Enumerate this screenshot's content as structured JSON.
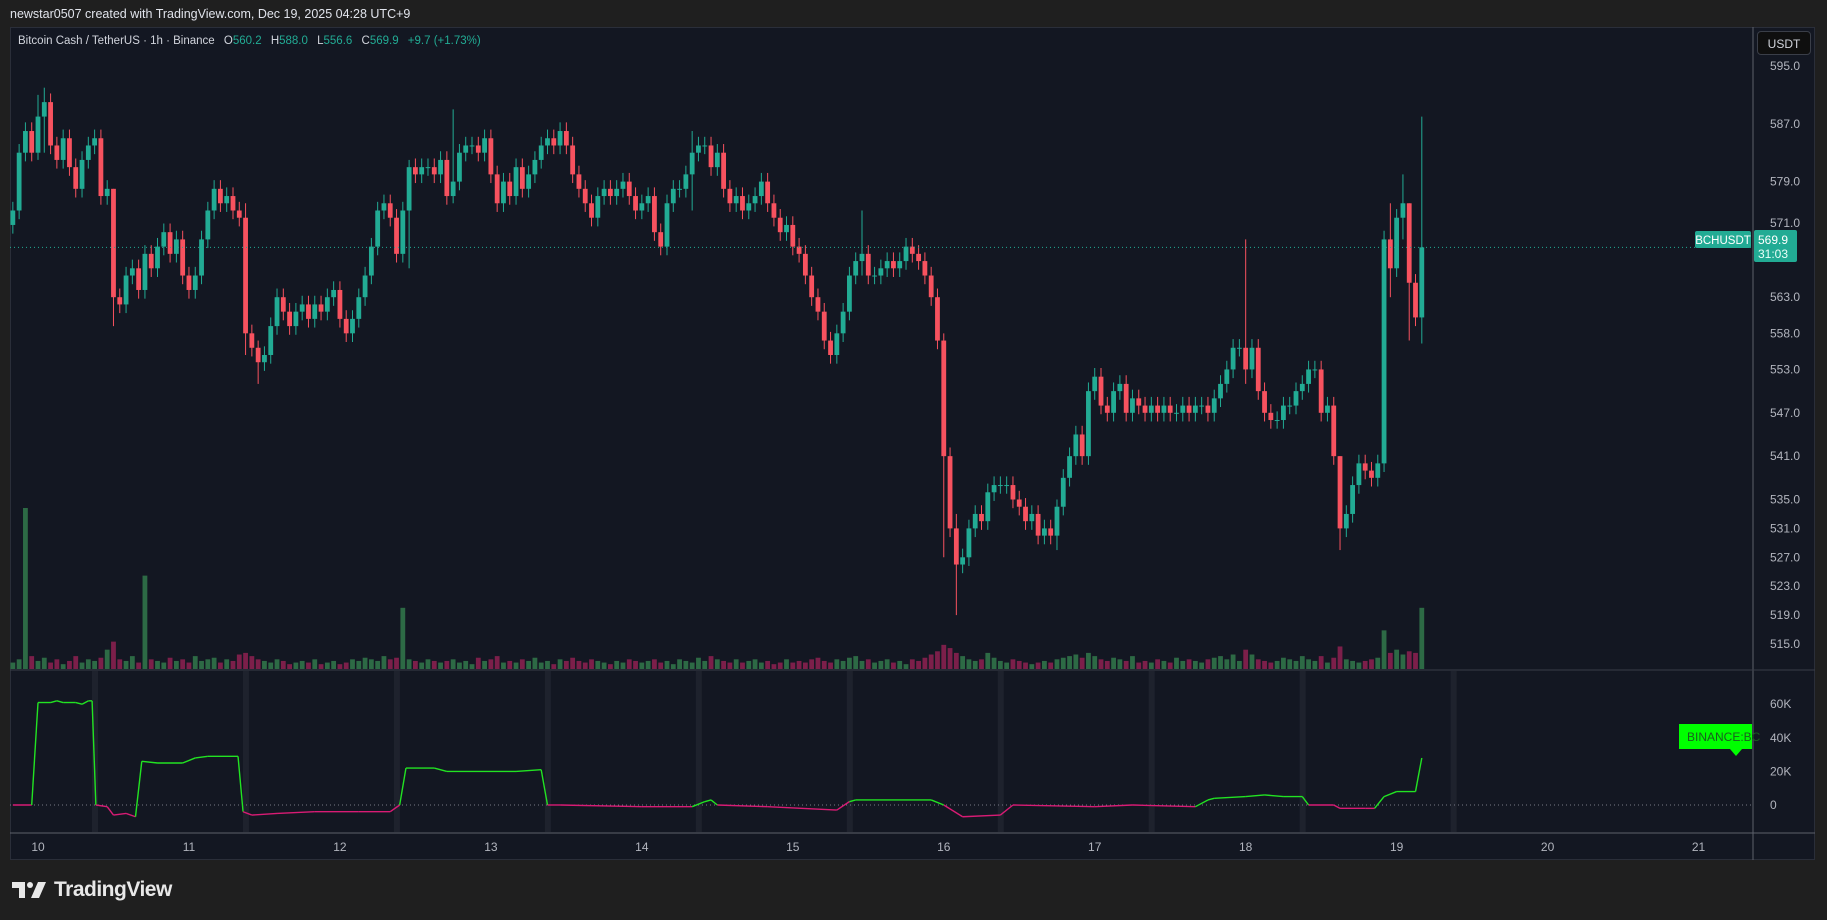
{
  "credit": "newstar0507 created with TradingView.com, Dec 19, 2025 04:28 UTC+9",
  "legend": {
    "title": "Bitcoin Cash / TetherUS · 1h · Binance",
    "open_label": "O",
    "open": "560.2",
    "high_label": "H",
    "high": "588.0",
    "low_label": "L",
    "low": "556.6",
    "close_label": "C",
    "close": "569.9",
    "change": "+9.7 (+1.73%)"
  },
  "currency": "USDT",
  "price_tag": {
    "symbol": "BCHUSDT",
    "price": "569.9",
    "countdown": "31:03"
  },
  "indicator_tag": "BINANCE:BC",
  "logo_text": "TradingView",
  "colors": {
    "up": "#22ab94",
    "down": "#f7525f",
    "indicator_pos": "#22e322",
    "indicator_neg": "#d81b74",
    "background": "#131722",
    "indicator_tag": "#00ff00"
  },
  "chart_data": [
    {
      "type": "candlestick",
      "interval": "1h",
      "symbol": "BCHUSDT",
      "x_tick_labels": [
        "10",
        "11",
        "12",
        "13",
        "14",
        "15",
        "16",
        "17",
        "18",
        "19",
        "20",
        "21"
      ],
      "y_tick_labels": [
        "595.0",
        "587.0",
        "579.0",
        "571.0",
        "563.0",
        "558.0",
        "553.0",
        "547.0",
        "541.0",
        "535.0",
        "531.0",
        "527.0",
        "523.0",
        "519.0",
        "515.0"
      ],
      "ylim": [
        513,
        597
      ],
      "last_price": 569.9,
      "closes": [
        575,
        583,
        586,
        583,
        588,
        590,
        584,
        582,
        585,
        581,
        578,
        582,
        584,
        585,
        577,
        578,
        563,
        562,
        566,
        567,
        564,
        569,
        567,
        570,
        572,
        569,
        571,
        566,
        564,
        566,
        571,
        575,
        578,
        576,
        577,
        575,
        574,
        558,
        556,
        554,
        555,
        559,
        563,
        561,
        559,
        561,
        562,
        560,
        562,
        561,
        563,
        564,
        560,
        558,
        560,
        563,
        566,
        570,
        575,
        576,
        574,
        569,
        575,
        581,
        580,
        581,
        581,
        580,
        582,
        577,
        579,
        583,
        584,
        584,
        583,
        585,
        580,
        576,
        579,
        577,
        581,
        578,
        580,
        582,
        584,
        585,
        584,
        586,
        584,
        580,
        578,
        576,
        574,
        577,
        578,
        577,
        578,
        579,
        577,
        575,
        576,
        577,
        572,
        570,
        576,
        578,
        578,
        580,
        583,
        584,
        584,
        581,
        583,
        578,
        576,
        577,
        575,
        576,
        577,
        579,
        576,
        574,
        572,
        573,
        570,
        569,
        566,
        563,
        561,
        557,
        555,
        558,
        561,
        566,
        568,
        569,
        566,
        566,
        567,
        568,
        567,
        568,
        570,
        569,
        568,
        566,
        563,
        557,
        541,
        531,
        526,
        527,
        531,
        533,
        532,
        536,
        537,
        537,
        537,
        535,
        534,
        532,
        533,
        530,
        531,
        530,
        534,
        538,
        541,
        544,
        541,
        550,
        552,
        548,
        547,
        550,
        551,
        547,
        549,
        548,
        547,
        548,
        547,
        548,
        547,
        547,
        548,
        547,
        548,
        548,
        547,
        549,
        551,
        553,
        556,
        556,
        553,
        556,
        550,
        547,
        546,
        546,
        548,
        548,
        550,
        551,
        553,
        553,
        547,
        548,
        541,
        531,
        533,
        537,
        540,
        539,
        538,
        540,
        571,
        567,
        574,
        576,
        565,
        560.2,
        569.9
      ],
      "wick_extremes": [
        [
          4,
          591,
          582
        ],
        [
          5,
          592,
          583
        ],
        [
          16,
          578,
          559
        ],
        [
          37,
          576,
          555
        ],
        [
          39,
          557,
          551
        ],
        [
          63,
          582,
          567
        ],
        [
          70,
          589,
          576
        ],
        [
          108,
          586,
          575
        ],
        [
          135,
          575,
          566
        ],
        [
          148,
          558,
          527
        ],
        [
          150,
          533,
          519
        ],
        [
          166,
          535,
          528
        ],
        [
          196,
          571,
          551
        ],
        [
          211,
          541,
          528
        ],
        [
          219,
          576,
          563
        ],
        [
          221,
          580,
          571
        ],
        [
          222,
          576,
          557
        ],
        [
          224,
          588.0,
          556.6
        ]
      ],
      "volume_relative": [
        4,
        6,
        100,
        8,
        5,
        7,
        4,
        6,
        3,
        5,
        8,
        4,
        6,
        5,
        7,
        12,
        17,
        6,
        5,
        8,
        4,
        58,
        6,
        5,
        4,
        7,
        5,
        6,
        4,
        8,
        5,
        6,
        7,
        4,
        6,
        5,
        9,
        10,
        8,
        6,
        5,
        4,
        6,
        5,
        3,
        4,
        5,
        4,
        6,
        3,
        4,
        5,
        3,
        4,
        6,
        5,
        7,
        6,
        5,
        8,
        6,
        7,
        38,
        6,
        5,
        4,
        6,
        5,
        4,
        5,
        6,
        4,
        5,
        3,
        7,
        5,
        6,
        8,
        4,
        5,
        4,
        6,
        5,
        7,
        4,
        5,
        3,
        6,
        5,
        7,
        5,
        4,
        6,
        5,
        4,
        3,
        5,
        4,
        6,
        5,
        4,
        5,
        6,
        4,
        5,
        3,
        6,
        5,
        4,
        7,
        5,
        8,
        6,
        5,
        4,
        6,
        4,
        5,
        6,
        4,
        5,
        3,
        4,
        6,
        4,
        5,
        4,
        6,
        7,
        5,
        4,
        6,
        5,
        7,
        8,
        5,
        6,
        4,
        5,
        6,
        4,
        5,
        3,
        6,
        5,
        7,
        9,
        11,
        15,
        13,
        10,
        8,
        6,
        5,
        6,
        10,
        7,
        5,
        4,
        6,
        5,
        4,
        3,
        4,
        5,
        4,
        6,
        7,
        8,
        9,
        7,
        10,
        8,
        6,
        5,
        7,
        6,
        5,
        8,
        4,
        5,
        4,
        6,
        5,
        4,
        7,
        5,
        6,
        5,
        4,
        6,
        7,
        8,
        6,
        9,
        5,
        12,
        9,
        6,
        5,
        4,
        5,
        7,
        6,
        5,
        8,
        6,
        5,
        8,
        4,
        7,
        14,
        6,
        5,
        4,
        5,
        6,
        7,
        24,
        10,
        12,
        9,
        11,
        10,
        38
      ]
    },
    {
      "type": "line",
      "indicator_label": "BINANCE:BC",
      "y_tick_labels": [
        "60K",
        "40K",
        "20K",
        "0"
      ],
      "ylim_thousands": [
        -12,
        72
      ],
      "points_index_thousands": [
        [
          0,
          0
        ],
        [
          3,
          0
        ],
        [
          4,
          61
        ],
        [
          6,
          61
        ],
        [
          7,
          62
        ],
        [
          8,
          61
        ],
        [
          10,
          61
        ],
        [
          11,
          60
        ],
        [
          12,
          62
        ],
        [
          12.6,
          62
        ],
        [
          13.2,
          0
        ],
        [
          15,
          -1
        ],
        [
          16,
          -6
        ],
        [
          18,
          -5
        ],
        [
          19.5,
          -7
        ],
        [
          20.5,
          26
        ],
        [
          23,
          25
        ],
        [
          27,
          25
        ],
        [
          29,
          28
        ],
        [
          31,
          29
        ],
        [
          35.8,
          29
        ],
        [
          36.6,
          -4
        ],
        [
          38,
          -6
        ],
        [
          42,
          -5
        ],
        [
          48,
          -4
        ],
        [
          55,
          -4
        ],
        [
          60,
          -4
        ],
        [
          61.5,
          0
        ],
        [
          62.5,
          22
        ],
        [
          67,
          22
        ],
        [
          69,
          20
        ],
        [
          80,
          20
        ],
        [
          84,
          21
        ],
        [
          85,
          0
        ],
        [
          87,
          0
        ],
        [
          100,
          -1
        ],
        [
          108,
          -1
        ],
        [
          110,
          2
        ],
        [
          111,
          3
        ],
        [
          112,
          0
        ],
        [
          120,
          -1
        ],
        [
          131,
          -3
        ],
        [
          133,
          2
        ],
        [
          134,
          3
        ],
        [
          146,
          3
        ],
        [
          148,
          0
        ],
        [
          151,
          -7
        ],
        [
          157,
          -6
        ],
        [
          159,
          0
        ],
        [
          172,
          -1
        ],
        [
          178,
          0
        ],
        [
          188,
          -1
        ],
        [
          190,
          3
        ],
        [
          191,
          4
        ],
        [
          196,
          5
        ],
        [
          199,
          6
        ],
        [
          202,
          5
        ],
        [
          205,
          5
        ],
        [
          206,
          0
        ],
        [
          210,
          0
        ],
        [
          211,
          -2
        ],
        [
          215,
          -2
        ],
        [
          216.5,
          -2
        ],
        [
          218,
          5
        ],
        [
          220,
          8
        ],
        [
          223,
          8
        ],
        [
          224,
          28
        ]
      ]
    }
  ]
}
